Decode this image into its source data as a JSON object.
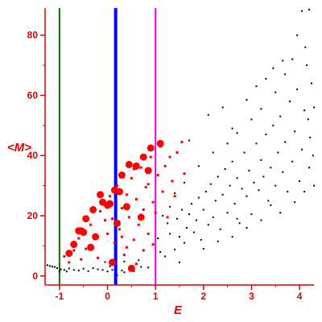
{
  "chart_data": {
    "type": "scatter",
    "xlabel": "E",
    "ylabel": "<M>",
    "xlim": [
      -1.3,
      4.3
    ],
    "ylim": [
      -3,
      89
    ],
    "x_ticks": [
      -1,
      0,
      1,
      2,
      3,
      4
    ],
    "y_ticks": [
      0,
      20,
      40,
      60,
      80
    ],
    "grid": false,
    "colors": {
      "axis": "#e00000",
      "black_points": "#000000",
      "red_points": "#ff0000",
      "line_green": "#007700",
      "line_blue": "#0000ff",
      "line_magenta": "#ee00ee"
    },
    "vertical_lines": [
      {
        "x": -1.0,
        "color": "#007700",
        "width": "thin"
      },
      {
        "x": 0.17,
        "color": "#0000ff",
        "width": "thick"
      },
      {
        "x": 1.0,
        "color": "#ee00ee",
        "width": "thin"
      }
    ],
    "series": [
      {
        "color": "#000000",
        "marker": "small",
        "points": [
          [
            -1.25,
            3.6
          ],
          [
            -1.2,
            3.3
          ],
          [
            -1.15,
            3.1
          ],
          [
            -1.1,
            3.0
          ],
          [
            -1.05,
            2.6
          ],
          [
            -1.0,
            1.5
          ],
          [
            -0.97,
            2.2
          ],
          [
            -0.9,
            2.0
          ],
          [
            -0.85,
            1.5
          ],
          [
            -0.8,
            2.5
          ],
          [
            -0.7,
            2.0
          ],
          [
            -0.6,
            1.8
          ],
          [
            -0.5,
            2.4
          ],
          [
            -0.4,
            1.6
          ],
          [
            -0.3,
            2.6
          ],
          [
            -0.2,
            2.2
          ],
          [
            -0.1,
            2.0
          ],
          [
            0.0,
            1.5
          ],
          [
            0.05,
            3.2
          ],
          [
            0.1,
            2.0
          ],
          [
            0.2,
            0.2
          ],
          [
            0.3,
            1.8
          ],
          [
            0.35,
            1.2
          ],
          [
            0.45,
            2.5
          ],
          [
            0.55,
            1.6
          ],
          [
            0.7,
            3.0
          ],
          [
            0.85,
            2.8
          ],
          [
            -0.05,
            4.6
          ],
          [
            0.35,
            4.8
          ],
          [
            0.65,
            5.2
          ],
          [
            1.1,
            8.0
          ],
          [
            1.05,
            12.5
          ],
          [
            1.2,
            6.5
          ],
          [
            1.3,
            14.0
          ],
          [
            1.25,
            17.5
          ],
          [
            1.4,
            8.8
          ],
          [
            1.45,
            19.0
          ],
          [
            1.5,
            13.0
          ],
          [
            1.55,
            22.0
          ],
          [
            1.6,
            11.0
          ],
          [
            1.65,
            16.0
          ],
          [
            1.7,
            20.5
          ],
          [
            1.75,
            24.0
          ],
          [
            1.8,
            14.5
          ],
          [
            1.85,
            18.5
          ],
          [
            1.9,
            26.0
          ],
          [
            1.95,
            12.0
          ],
          [
            2.0,
            22.0
          ],
          [
            2.05,
            28.0
          ],
          [
            2.1,
            17.0
          ],
          [
            2.15,
            30.5
          ],
          [
            2.2,
            19.5
          ],
          [
            2.25,
            25.0
          ],
          [
            2.3,
            33.0
          ],
          [
            2.35,
            15.5
          ],
          [
            2.4,
            27.0
          ],
          [
            2.45,
            35.5
          ],
          [
            2.5,
            21.0
          ],
          [
            2.55,
            30.0
          ],
          [
            2.6,
            38.0
          ],
          [
            2.65,
            24.0
          ],
          [
            2.7,
            32.5
          ],
          [
            2.75,
            17.5
          ],
          [
            2.8,
            29.0
          ],
          [
            2.85,
            41.0
          ],
          [
            2.9,
            26.5
          ],
          [
            2.95,
            35.0
          ],
          [
            3.0,
            20.5
          ],
          [
            3.05,
            31.0
          ],
          [
            3.1,
            44.0
          ],
          [
            3.15,
            28.5
          ],
          [
            3.2,
            38.5
          ],
          [
            3.25,
            33.0
          ],
          [
            3.3,
            47.0
          ],
          [
            3.35,
            25.0
          ],
          [
            3.4,
            36.0
          ],
          [
            3.45,
            50.0
          ],
          [
            3.5,
            30.0
          ],
          [
            3.55,
            41.0
          ],
          [
            3.6,
            53.0
          ],
          [
            3.65,
            34.5
          ],
          [
            3.7,
            44.5
          ],
          [
            3.75,
            28.0
          ],
          [
            3.8,
            58.0
          ],
          [
            3.85,
            38.0
          ],
          [
            3.9,
            48.0
          ],
          [
            3.95,
            62.0
          ],
          [
            4.0,
            31.5
          ],
          [
            4.05,
            42.0
          ],
          [
            4.1,
            55.0
          ],
          [
            4.15,
            70.0
          ],
          [
            4.2,
            36.0
          ],
          [
            4.22,
            46.0
          ],
          [
            4.25,
            64.0
          ],
          [
            4.18,
            52.0
          ],
          [
            1.7,
            45.0
          ],
          [
            2.1,
            53.5
          ],
          [
            2.4,
            56.0
          ],
          [
            2.6,
            49.0
          ],
          [
            2.9,
            58.5
          ],
          [
            3.1,
            63.0
          ],
          [
            3.3,
            65.5
          ],
          [
            3.5,
            61.0
          ],
          [
            3.7,
            67.0
          ],
          [
            3.95,
            80.0
          ],
          [
            4.05,
            88.0
          ],
          [
            4.2,
            88.5
          ],
          [
            4.12,
            76.0
          ],
          [
            3.85,
            72.0
          ],
          [
            3.65,
            71.5
          ],
          [
            3.45,
            69.0
          ],
          [
            4.3,
            56.0
          ],
          [
            4.28,
            40.0
          ],
          [
            2.2,
            41.0
          ],
          [
            2.5,
            44.0
          ],
          [
            2.7,
            47.5
          ],
          [
            3.0,
            52.0
          ],
          [
            3.2,
            55.5
          ],
          [
            1.9,
            36.5
          ],
          [
            1.6,
            31.0
          ],
          [
            1.4,
            27.5
          ],
          [
            1.3,
            23.0
          ],
          [
            1.15,
            20.0
          ],
          [
            2.0,
            9.0
          ],
          [
            2.3,
            11.5
          ],
          [
            2.6,
            13.0
          ],
          [
            2.9,
            16.0
          ],
          [
            3.2,
            18.5
          ],
          [
            3.6,
            21.0
          ],
          [
            3.9,
            24.5
          ],
          [
            4.1,
            28.0
          ],
          [
            4.3,
            30.0
          ],
          [
            2.7,
            19.0
          ],
          [
            3.4,
            23.5
          ],
          [
            1.5,
            4.5
          ]
        ]
      },
      {
        "color": "#ff0000",
        "marker": "small",
        "points": [
          [
            -0.9,
            6.5
          ],
          [
            -0.8,
            4.5
          ],
          [
            -0.7,
            8.5
          ],
          [
            -0.6,
            12.5
          ],
          [
            -0.45,
            9.0
          ],
          [
            -0.35,
            17.0
          ],
          [
            -0.25,
            13.5
          ],
          [
            -0.15,
            21.5
          ],
          [
            -0.05,
            18.5
          ],
          [
            0.05,
            26.5
          ],
          [
            0.15,
            11.0
          ],
          [
            0.2,
            30.0
          ],
          [
            0.25,
            15.5
          ],
          [
            0.3,
            22.5
          ],
          [
            0.35,
            7.0
          ],
          [
            0.4,
            27.0
          ],
          [
            0.45,
            19.5
          ],
          [
            0.5,
            32.5
          ],
          [
            0.55,
            12.0
          ],
          [
            0.6,
            25.5
          ],
          [
            0.65,
            17.0
          ],
          [
            0.7,
            36.0
          ],
          [
            0.75,
            22.0
          ],
          [
            0.8,
            29.5
          ],
          [
            0.85,
            14.0
          ],
          [
            0.9,
            39.5
          ],
          [
            0.95,
            24.5
          ],
          [
            1.05,
            33.5
          ],
          [
            1.1,
            43.0
          ],
          [
            1.15,
            28.0
          ],
          [
            1.2,
            36.5
          ],
          [
            1.25,
            19.5
          ],
          [
            1.35,
            31.5
          ],
          [
            1.45,
            41.0
          ],
          [
            1.55,
            44.5
          ],
          [
            1.6,
            34.0
          ],
          [
            1.3,
            39.5
          ],
          [
            1.4,
            26.5
          ],
          [
            0.6,
            4.0
          ],
          [
            0.4,
            9.5
          ],
          [
            0.75,
            8.5
          ],
          [
            0.95,
            10.5
          ],
          [
            0.85,
            30.5
          ],
          [
            1.0,
            21.0
          ],
          [
            0.3,
            13.0
          ],
          [
            -0.2,
            6.0
          ],
          [
            -0.55,
            5.5
          ],
          [
            0.0,
            14.0
          ],
          [
            0.1,
            19.0
          ],
          [
            0.55,
            35.5
          ]
        ]
      },
      {
        "color": "#ff0000",
        "marker": "large",
        "points": [
          [
            -0.7,
            10.5
          ],
          [
            -0.6,
            15.0
          ],
          [
            -0.55,
            15.0
          ],
          [
            -0.5,
            14.5
          ],
          [
            -0.45,
            19.0
          ],
          [
            -0.3,
            22.0
          ],
          [
            -0.1,
            24.5
          ],
          [
            0.0,
            23.5
          ],
          [
            0.05,
            24.0
          ],
          [
            0.15,
            28.5
          ],
          [
            0.3,
            33.5
          ],
          [
            0.45,
            37.0
          ],
          [
            0.6,
            36.5
          ],
          [
            0.75,
            39.5
          ],
          [
            0.9,
            42.5
          ],
          [
            1.1,
            44.0
          ],
          [
            0.85,
            35.0
          ],
          [
            0.25,
            28.0
          ],
          [
            -0.15,
            27.0
          ],
          [
            0.2,
            17.5
          ],
          [
            -0.25,
            13.0
          ],
          [
            -0.8,
            7.5
          ],
          [
            0.1,
            4.5
          ],
          [
            0.5,
            2.5
          ],
          [
            -0.35,
            9.5
          ],
          [
            0.7,
            19.5
          ],
          [
            0.4,
            23.0
          ]
        ]
      }
    ]
  }
}
